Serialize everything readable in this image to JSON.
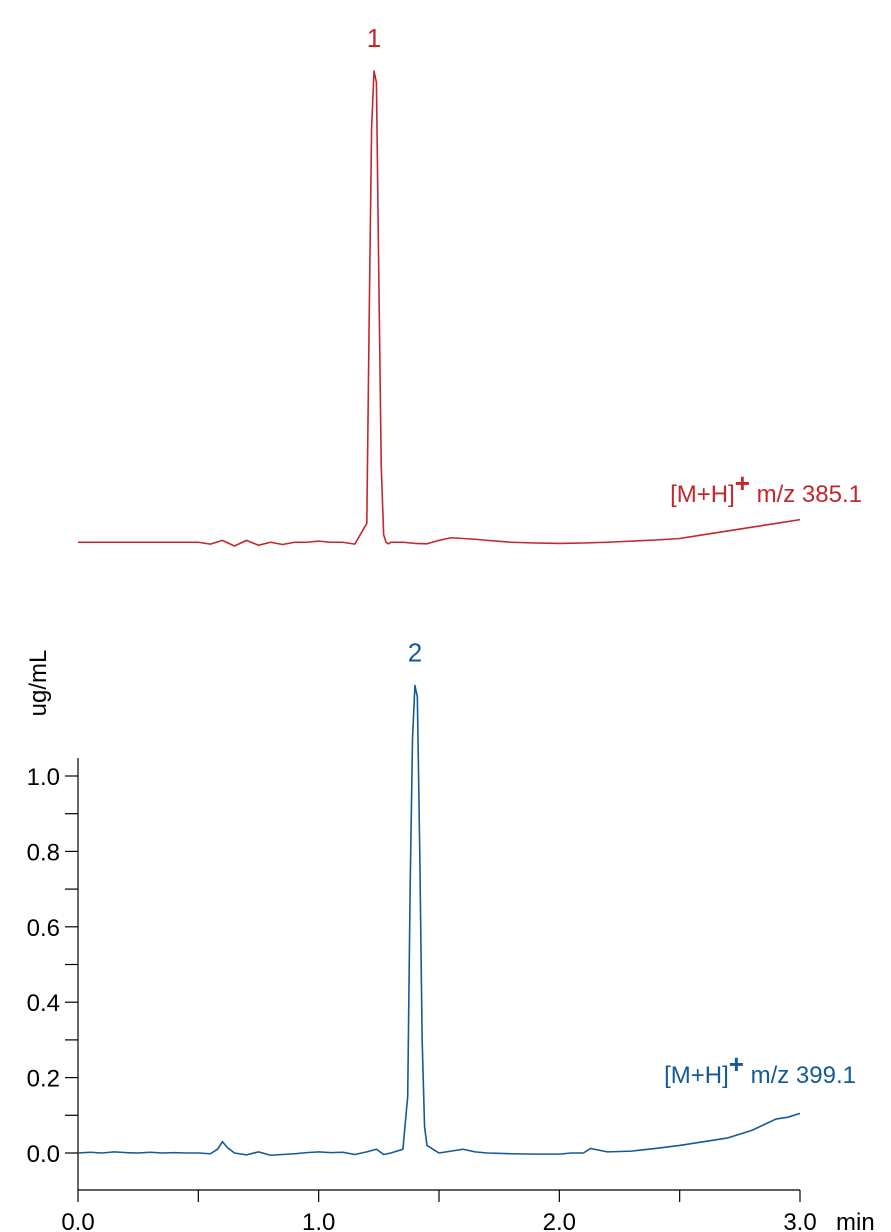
{
  "chart_data": {
    "type": "line",
    "xlabel": "min",
    "ylabel": "ug/mL",
    "xlim": [
      0,
      3
    ],
    "ylim": [
      0,
      1.0
    ],
    "x_ticks": [
      0.0,
      1.0,
      2.0,
      3.0
    ],
    "x_tick_labels": [
      "0.0",
      "1.0",
      "2.0",
      "3.0"
    ],
    "x_minor_step": 0.5,
    "y_ticks": [
      0.0,
      0.2,
      0.4,
      0.6,
      0.8,
      1.0
    ],
    "y_tick_labels": [
      "0.0",
      "0.2",
      "0.4",
      "0.6",
      "0.8",
      "1.0"
    ],
    "y_minor_step": 0.1,
    "grid": false,
    "series": [
      {
        "name": "[M+H]+ m/z 385.1",
        "label_main": "[M+H]",
        "label_sup": "+",
        "label_tail": " m/z 385.1",
        "color": "#c0282d",
        "baseline_offset": 1.62,
        "peak_label": "1",
        "x": [
          0.0,
          0.1,
          0.2,
          0.3,
          0.4,
          0.5,
          0.55,
          0.6,
          0.65,
          0.7,
          0.75,
          0.8,
          0.85,
          0.9,
          0.95,
          1.0,
          1.05,
          1.1,
          1.15,
          1.2,
          1.21,
          1.22,
          1.23,
          1.24,
          1.25,
          1.26,
          1.27,
          1.28,
          1.29,
          1.3,
          1.35,
          1.4,
          1.45,
          1.5,
          1.55,
          1.6,
          1.65,
          1.7,
          1.8,
          1.9,
          2.0,
          2.1,
          2.2,
          2.3,
          2.4,
          2.5,
          2.6,
          2.7,
          2.8,
          2.9,
          3.0
        ],
        "values": [
          0.0,
          0.0,
          0.0,
          0.0,
          0.0,
          0.0,
          -0.005,
          0.005,
          -0.01,
          0.005,
          -0.008,
          0.0,
          -0.006,
          0.0,
          0.0,
          0.003,
          0.0,
          0.0,
          -0.005,
          0.05,
          0.6,
          1.1,
          1.25,
          1.22,
          0.7,
          0.2,
          0.02,
          0.0,
          -0.004,
          0.0,
          0.0,
          -0.003,
          -0.004,
          0.005,
          0.012,
          0.01,
          0.008,
          0.005,
          0.0,
          -0.002,
          -0.003,
          -0.002,
          0.0,
          0.003,
          0.006,
          0.01,
          0.02,
          0.03,
          0.04,
          0.05,
          0.06
        ]
      },
      {
        "name": "[M+H]+ m/z 399.1",
        "label_main": "[M+H]",
        "label_sup": "+",
        "label_tail": " m/z 399.1",
        "color": "#145a96",
        "baseline_offset": 0.0,
        "peak_label": "2",
        "x": [
          0.0,
          0.05,
          0.1,
          0.15,
          0.2,
          0.25,
          0.3,
          0.35,
          0.4,
          0.45,
          0.5,
          0.55,
          0.58,
          0.6,
          0.62,
          0.65,
          0.7,
          0.75,
          0.8,
          0.85,
          0.9,
          0.95,
          1.0,
          1.05,
          1.1,
          1.15,
          1.2,
          1.24,
          1.27,
          1.3,
          1.35,
          1.37,
          1.38,
          1.39,
          1.4,
          1.41,
          1.42,
          1.43,
          1.44,
          1.45,
          1.5,
          1.55,
          1.6,
          1.65,
          1.7,
          1.8,
          1.9,
          2.0,
          2.05,
          2.1,
          2.13,
          2.2,
          2.3,
          2.4,
          2.5,
          2.6,
          2.7,
          2.8,
          2.85,
          2.9,
          2.95,
          3.0
        ],
        "values": [
          0.0,
          0.002,
          0.0,
          0.003,
          0.001,
          0.0,
          0.002,
          0.0,
          0.001,
          0.0,
          0.0,
          -0.002,
          0.01,
          0.03,
          0.015,
          0.0,
          -0.005,
          0.003,
          -0.006,
          -0.004,
          -0.002,
          0.001,
          0.003,
          0.001,
          0.002,
          -0.004,
          0.003,
          0.01,
          -0.004,
          0.0,
          0.01,
          0.15,
          0.7,
          1.1,
          1.24,
          1.21,
          0.8,
          0.3,
          0.07,
          0.02,
          0.0,
          0.005,
          0.01,
          0.003,
          0.0,
          -0.002,
          -0.003,
          -0.003,
          0.0,
          0.0,
          0.012,
          0.003,
          0.005,
          0.012,
          0.02,
          0.03,
          0.04,
          0.06,
          0.075,
          0.09,
          0.095,
          0.105
        ]
      }
    ]
  }
}
